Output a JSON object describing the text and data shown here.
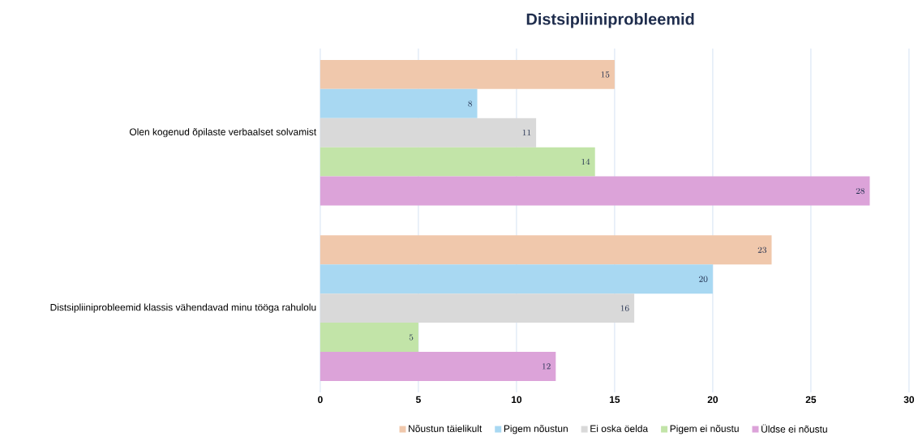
{
  "chart_data": {
    "type": "bar",
    "orientation": "horizontal",
    "title": "Distsipliiniprobleemid",
    "categories": [
      "Olen kogenud õpilaste verbaalset solvamist",
      "Distsipliiniprobleemid klassis vähendavad minu tööga rahulolu"
    ],
    "series": [
      {
        "name": "Nõustun täielikult",
        "color": "#f0c8ac",
        "values": [
          15,
          23
        ]
      },
      {
        "name": "Pigem nõustun",
        "color": "#a8d8f2",
        "values": [
          8,
          20
        ]
      },
      {
        "name": "Ei oska öelda",
        "color": "#d9d9d9",
        "values": [
          11,
          16
        ]
      },
      {
        "name": "Pigem ei nõustu",
        "color": "#c2e4a8",
        "values": [
          14,
          5
        ]
      },
      {
        "name": "Üldse ei nõustu",
        "color": "#dca3d9",
        "values": [
          28,
          12
        ]
      }
    ],
    "xlim": [
      0,
      30
    ],
    "xticks": [
      0,
      5,
      10,
      15,
      20,
      25,
      30
    ],
    "grid": "x",
    "legend": "bottom",
    "data_labels": true
  }
}
